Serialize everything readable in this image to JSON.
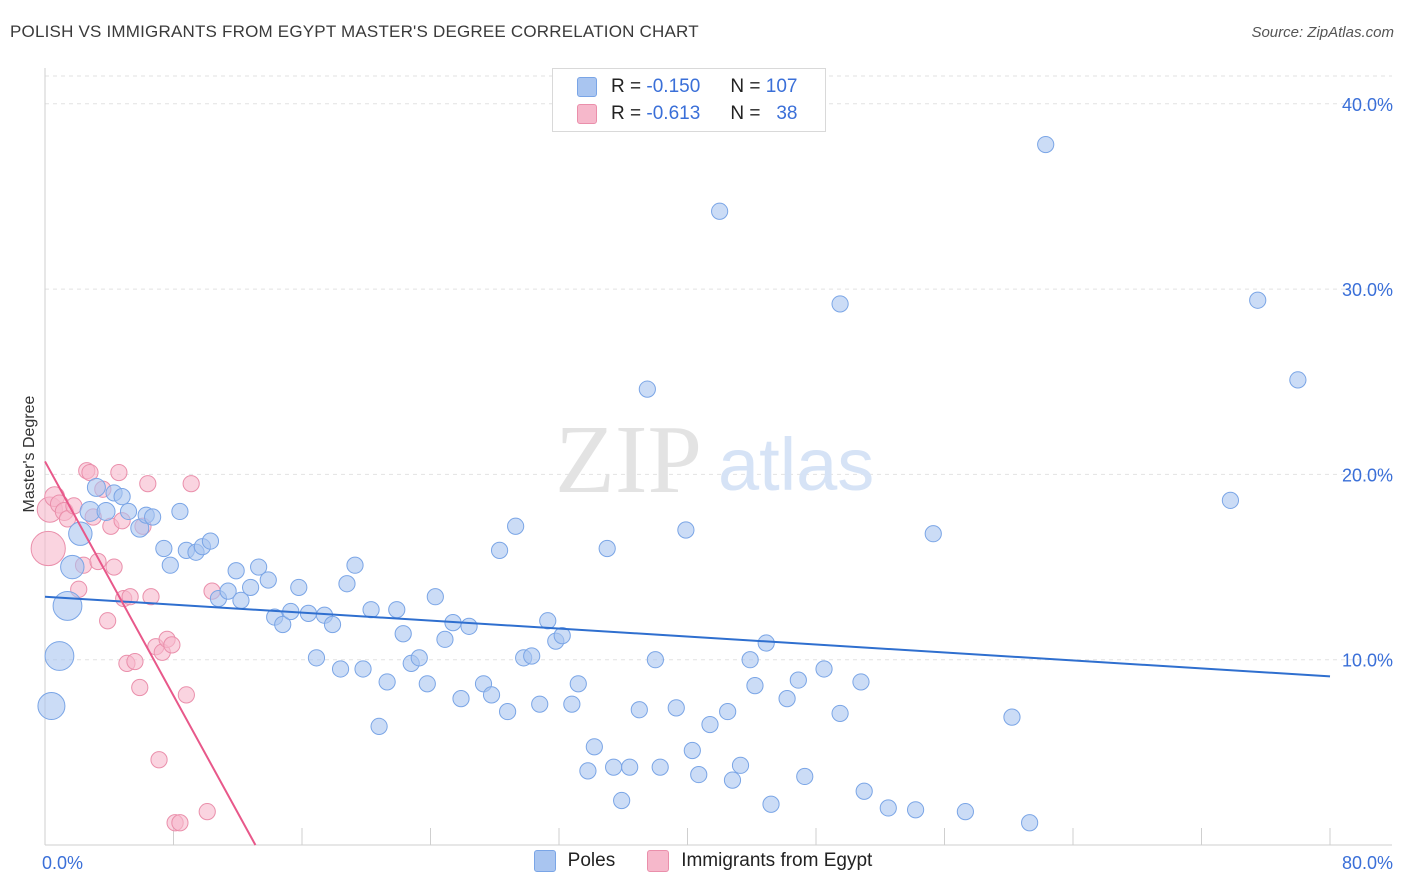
{
  "header": {
    "title": "POLISH VS IMMIGRANTS FROM EGYPT MASTER'S DEGREE CORRELATION CHART",
    "source": "Source: ZipAtlas.com"
  },
  "watermark": {
    "zip": "ZIP",
    "atlas": "atlas"
  },
  "legend": {
    "rows": [
      {
        "r_label": "R =",
        "r_value": "-0.150",
        "n_label": "N =",
        "n_value": "107",
        "color": "#a9c5f0"
      },
      {
        "r_label": "R =",
        "r_value": "-0.613",
        "n_label": "N =",
        "n_value": "38",
        "color": "#f6b8cb"
      }
    ]
  },
  "bottom_legend": [
    {
      "label": "Poles",
      "color": "#a9c5f0"
    },
    {
      "label": "Immigrants from Egypt",
      "color": "#f6b8cb"
    }
  ],
  "chart_data": {
    "type": "scatter",
    "title": "POLISH VS IMMIGRANTS FROM EGYPT MASTER'S DEGREE CORRELATION CHART",
    "xlabel": "",
    "ylabel": "Master's Degree",
    "xlim": [
      0,
      80
    ],
    "ylim": [
      0,
      41.5
    ],
    "x_tick_labels": [
      "0.0%",
      "80.0%"
    ],
    "y_ticks": [
      10,
      20,
      30,
      40
    ],
    "y_tick_labels": [
      "10.0%",
      "20.0%",
      "30.0%",
      "40.0%"
    ],
    "grid": true,
    "series": [
      {
        "name": "Poles",
        "color": "#a9c5f0",
        "stroke": "#7aa5e6",
        "trend": {
          "x": [
            0,
            80
          ],
          "y": [
            13.4,
            9.1
          ],
          "color": "#2f6fcf"
        },
        "points": [
          [
            0.4,
            7.5,
            1.5
          ],
          [
            0.9,
            10.2,
            1.6
          ],
          [
            1.4,
            12.9,
            1.6
          ],
          [
            1.7,
            15.0,
            1.3
          ],
          [
            2.2,
            16.8,
            1.3
          ],
          [
            2.8,
            18.0,
            1.1
          ],
          [
            3.2,
            19.3,
            1.0
          ],
          [
            3.8,
            18.0,
            1.0
          ],
          [
            4.3,
            19.0,
            0.9
          ],
          [
            4.8,
            18.8,
            0.9
          ],
          [
            5.2,
            18.0,
            0.9
          ],
          [
            5.9,
            17.1,
            1.0
          ],
          [
            6.3,
            17.8,
            0.9
          ],
          [
            6.7,
            17.7,
            0.9
          ],
          [
            7.4,
            16.0,
            0.9
          ],
          [
            7.8,
            15.1,
            0.9
          ],
          [
            8.4,
            18.0,
            0.9
          ],
          [
            8.8,
            15.9,
            0.9
          ],
          [
            9.4,
            15.8,
            0.9
          ],
          [
            9.8,
            16.1,
            0.9
          ],
          [
            10.3,
            16.4,
            0.9
          ],
          [
            10.8,
            13.3,
            0.9
          ],
          [
            11.4,
            13.7,
            0.9
          ],
          [
            11.9,
            14.8,
            0.9
          ],
          [
            12.2,
            13.2,
            0.9
          ],
          [
            12.8,
            13.9,
            0.9
          ],
          [
            13.3,
            15.0,
            0.9
          ],
          [
            13.9,
            14.3,
            0.9
          ],
          [
            14.3,
            12.3,
            0.9
          ],
          [
            14.8,
            11.9,
            0.9
          ],
          [
            15.3,
            12.6,
            0.9
          ],
          [
            15.8,
            13.9,
            0.9
          ],
          [
            16.4,
            12.5,
            0.9
          ],
          [
            16.9,
            10.1,
            0.9
          ],
          [
            17.4,
            12.4,
            0.9
          ],
          [
            17.9,
            11.9,
            0.9
          ],
          [
            18.4,
            9.5,
            0.9
          ],
          [
            18.8,
            14.1,
            0.9
          ],
          [
            19.3,
            15.1,
            0.9
          ],
          [
            19.8,
            9.5,
            0.9
          ],
          [
            20.3,
            12.7,
            0.9
          ],
          [
            20.8,
            6.4,
            0.9
          ],
          [
            21.3,
            8.8,
            0.9
          ],
          [
            21.9,
            12.7,
            0.9
          ],
          [
            22.3,
            11.4,
            0.9
          ],
          [
            22.8,
            9.8,
            0.9
          ],
          [
            23.3,
            10.1,
            0.9
          ],
          [
            23.8,
            8.7,
            0.9
          ],
          [
            24.3,
            13.4,
            0.9
          ],
          [
            24.9,
            11.1,
            0.9
          ],
          [
            25.4,
            12.0,
            0.9
          ],
          [
            25.9,
            7.9,
            0.9
          ],
          [
            26.4,
            11.8,
            0.9
          ],
          [
            27.3,
            8.7,
            0.9
          ],
          [
            27.8,
            8.1,
            0.9
          ],
          [
            28.3,
            15.9,
            0.9
          ],
          [
            28.8,
            7.2,
            0.9
          ],
          [
            29.3,
            17.2,
            0.9
          ],
          [
            29.8,
            10.1,
            0.9
          ],
          [
            30.3,
            10.2,
            0.9
          ],
          [
            30.8,
            7.6,
            0.9
          ],
          [
            31.3,
            12.1,
            0.9
          ],
          [
            31.8,
            11.0,
            0.9
          ],
          [
            32.2,
            11.3,
            0.9
          ],
          [
            32.8,
            7.6,
            0.9
          ],
          [
            33.2,
            8.7,
            0.9
          ],
          [
            33.8,
            4.0,
            0.9
          ],
          [
            34.2,
            5.3,
            0.9
          ],
          [
            35.0,
            16.0,
            0.9
          ],
          [
            35.4,
            4.2,
            0.9
          ],
          [
            35.9,
            2.4,
            0.9
          ],
          [
            36.4,
            4.2,
            0.9
          ],
          [
            37.0,
            7.3,
            0.9
          ],
          [
            37.5,
            24.6,
            0.9
          ],
          [
            38.0,
            10.0,
            0.9
          ],
          [
            38.3,
            4.2,
            0.9
          ],
          [
            39.3,
            7.4,
            0.9
          ],
          [
            39.9,
            17.0,
            0.9
          ],
          [
            40.3,
            5.1,
            0.9
          ],
          [
            40.7,
            3.8,
            0.9
          ],
          [
            41.4,
            6.5,
            0.9
          ],
          [
            42.0,
            34.2,
            0.9
          ],
          [
            42.5,
            7.2,
            0.9
          ],
          [
            42.8,
            3.5,
            0.9
          ],
          [
            43.3,
            4.3,
            0.9
          ],
          [
            43.9,
            10.0,
            0.9
          ],
          [
            44.2,
            8.6,
            0.9
          ],
          [
            44.9,
            10.9,
            0.9
          ],
          [
            45.2,
            2.2,
            0.9
          ],
          [
            46.2,
            7.9,
            0.9
          ],
          [
            46.9,
            8.9,
            0.9
          ],
          [
            47.3,
            3.7,
            0.9
          ],
          [
            48.5,
            9.5,
            0.9
          ],
          [
            49.5,
            7.1,
            0.9
          ],
          [
            49.5,
            29.2,
            0.9
          ],
          [
            50.8,
            8.8,
            0.9
          ],
          [
            51.0,
            2.9,
            0.9
          ],
          [
            52.5,
            2.0,
            0.9
          ],
          [
            54.2,
            1.9,
            0.9
          ],
          [
            55.3,
            16.8,
            0.9
          ],
          [
            57.3,
            1.8,
            0.9
          ],
          [
            60.2,
            6.9,
            0.9
          ],
          [
            61.3,
            1.2,
            0.9
          ],
          [
            62.3,
            37.8,
            0.9
          ],
          [
            73.8,
            18.6,
            0.9
          ],
          [
            75.5,
            29.4,
            0.9
          ],
          [
            78.0,
            25.1,
            0.9
          ]
        ]
      },
      {
        "name": "Immigrants from Egypt",
        "color": "#f6b8cb",
        "stroke": "#ea8fab",
        "trend": {
          "x": [
            0,
            13.1
          ],
          "y": [
            20.7,
            0
          ],
          "color": "#e8588a"
        },
        "points": [
          [
            0.2,
            16.0,
            1.9
          ],
          [
            0.3,
            18.1,
            1.4
          ],
          [
            0.6,
            18.8,
            1.1
          ],
          [
            0.9,
            18.4,
            1.0
          ],
          [
            1.2,
            18.0,
            1.0
          ],
          [
            1.4,
            17.6,
            0.9
          ],
          [
            1.8,
            18.3,
            0.9
          ],
          [
            2.1,
            13.8,
            0.9
          ],
          [
            2.4,
            15.1,
            0.9
          ],
          [
            2.6,
            20.2,
            0.9
          ],
          [
            2.8,
            20.1,
            0.9
          ],
          [
            3.0,
            17.7,
            0.9
          ],
          [
            3.3,
            15.3,
            0.9
          ],
          [
            3.6,
            19.2,
            0.9
          ],
          [
            3.9,
            12.1,
            0.9
          ],
          [
            4.1,
            17.2,
            0.9
          ],
          [
            4.3,
            15.0,
            0.9
          ],
          [
            4.6,
            20.1,
            0.9
          ],
          [
            4.8,
            17.5,
            0.9
          ],
          [
            4.9,
            13.3,
            0.9
          ],
          [
            5.1,
            9.8,
            0.9
          ],
          [
            5.3,
            13.4,
            0.9
          ],
          [
            5.6,
            9.9,
            0.9
          ],
          [
            5.9,
            8.5,
            0.9
          ],
          [
            6.1,
            17.2,
            0.9
          ],
          [
            6.4,
            19.5,
            0.9
          ],
          [
            6.6,
            13.4,
            0.9
          ],
          [
            6.9,
            10.7,
            0.9
          ],
          [
            7.1,
            4.6,
            0.9
          ],
          [
            7.3,
            10.4,
            0.9
          ],
          [
            7.6,
            11.1,
            0.9
          ],
          [
            7.9,
            10.8,
            0.9
          ],
          [
            8.1,
            1.2,
            0.9
          ],
          [
            8.4,
            1.2,
            0.9
          ],
          [
            8.8,
            8.1,
            0.9
          ],
          [
            9.1,
            19.5,
            0.9
          ],
          [
            10.1,
            1.8,
            0.9
          ],
          [
            10.4,
            13.7,
            0.9
          ]
        ]
      }
    ]
  }
}
